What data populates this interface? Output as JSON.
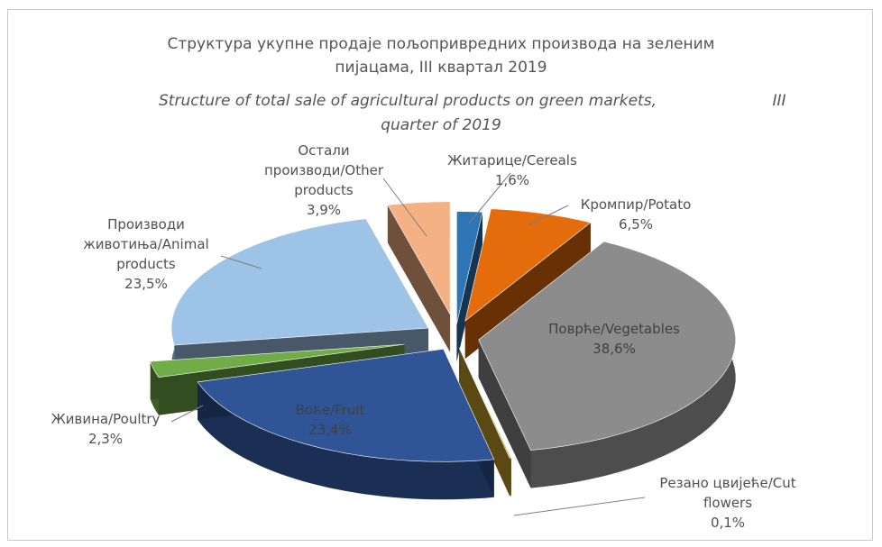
{
  "title": {
    "line1": "Структура укупне продаје пољопривредних производа на зеленим",
    "line2": "пијацама, III квартал 2019",
    "line3": "Structure of total sale of agricultural products on green markets,",
    "line3_tail": "III",
    "line4": "quarter of 2019"
  },
  "chart_data": {
    "type": "pie",
    "style": "3d-exploded",
    "title": "Структура укупне продаје пољопривредних производа на зеленим пијацама, III квартал 2019 / Structure of total sale of agricultural products on green markets, III quarter of 2019",
    "slices": [
      {
        "label_lines": [
          "Житарице/Cereals"
        ],
        "value_label": "1,6%",
        "value": 1.6,
        "color": "#2e75b6"
      },
      {
        "label_lines": [
          "Кромпир/Potato"
        ],
        "value_label": "6,5%",
        "value": 6.5,
        "color": "#e46c0a"
      },
      {
        "label_lines": [
          "Поврће/Vegetables"
        ],
        "value_label": "38,6%",
        "value": 38.6,
        "color": "#8c8c8c"
      },
      {
        "label_lines": [
          "Резано цвијеће/Cut",
          "flowers"
        ],
        "value_label": "0,1%",
        "value": 0.1,
        "color": "#c9a227"
      },
      {
        "label_lines": [
          "Воће/Fruit"
        ],
        "value_label": "23,4%",
        "value": 23.4,
        "color": "#2f5597"
      },
      {
        "label_lines": [
          "Живина/Poultry"
        ],
        "value_label": "2,3%",
        "value": 2.3,
        "color": "#70ad47"
      },
      {
        "label_lines": [
          "Производи",
          "животиња/Animal",
          "products"
        ],
        "value_label": "23,5%",
        "value": 23.5,
        "color": "#9dc3e6"
      },
      {
        "label_lines": [
          "Остали",
          "производи/Other",
          "products"
        ],
        "value_label": "3,9%",
        "value": 3.9,
        "color": "#f4b183"
      }
    ],
    "legend": "none"
  }
}
